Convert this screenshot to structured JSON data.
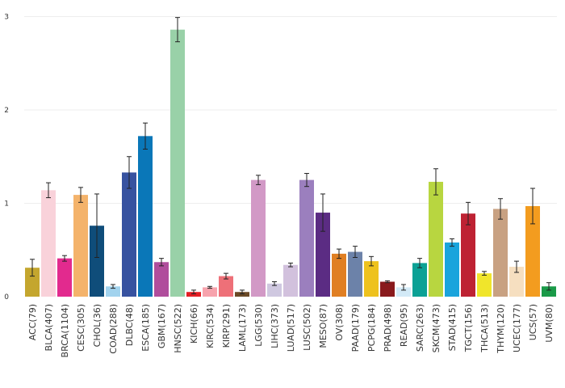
{
  "chart_data": {
    "type": "bar",
    "categories": [
      "ACC(79)",
      "BLCA(407)",
      "BRCA(1104)",
      "CESC(305)",
      "CHOL(36)",
      "COAD(288)",
      "DLBC(48)",
      "ESCA(185)",
      "GBM(167)",
      "HNSC(522)",
      "KICH(66)",
      "KIRC(534)",
      "KIRP(291)",
      "LAML(173)",
      "LGG(530)",
      "LIHC(373)",
      "LUAD(517)",
      "LUSC(502)",
      "MESO(87)",
      "OV(308)",
      "PAAD(179)",
      "PCPG(184)",
      "PRAD(498)",
      "READ(95)",
      "SARC(263)",
      "SKCM(473)",
      "STAD(415)",
      "TGCT(156)",
      "THCA(513)",
      "THYM(120)",
      "UCEC(177)",
      "UCS(57)",
      "UVM(80)"
    ],
    "values": [
      0.31,
      1.14,
      0.41,
      1.09,
      0.76,
      0.11,
      1.33,
      1.72,
      0.37,
      2.86,
      0.05,
      0.1,
      0.22,
      0.05,
      1.25,
      0.14,
      0.34,
      1.25,
      0.9,
      0.46,
      0.48,
      0.38,
      0.16,
      0.1,
      0.36,
      1.23,
      0.58,
      0.89,
      0.25,
      0.94,
      0.32,
      0.97,
      0.11
    ],
    "errors": [
      0.09,
      0.08,
      0.03,
      0.08,
      0.34,
      0.02,
      0.17,
      0.14,
      0.04,
      0.13,
      0.02,
      0.01,
      0.03,
      0.02,
      0.05,
      0.02,
      0.02,
      0.07,
      0.2,
      0.05,
      0.06,
      0.05,
      0.01,
      0.03,
      0.05,
      0.14,
      0.04,
      0.12,
      0.02,
      0.11,
      0.06,
      0.19,
      0.04
    ],
    "colors": [
      "#c4a62e",
      "#f9d2da",
      "#e22a8e",
      "#f4b36b",
      "#0f4d7a",
      "#a2d3ee",
      "#3752a0",
      "#0a77b8",
      "#b04d9c",
      "#99d1a8",
      "#e31e24",
      "#f7a3ad",
      "#ee7078",
      "#6b4a27",
      "#d299c6",
      "#cfc8e0",
      "#d2c1dd",
      "#9b7fbe",
      "#5b2c83",
      "#e07f23",
      "#6c82a9",
      "#eec21e",
      "#891a1d",
      "#d3eaf7",
      "#0ba195",
      "#b8d640",
      "#1aa4dc",
      "#be2233",
      "#f0e52b",
      "#c8a182",
      "#f6dfc0",
      "#f39c1f",
      "#1a9a48"
    ],
    "yticks": [
      "0",
      "1",
      "2",
      "3"
    ],
    "ylim": [
      0,
      3.05
    ],
    "xlabel": "",
    "ylabel": "",
    "title": "",
    "grid": true
  }
}
